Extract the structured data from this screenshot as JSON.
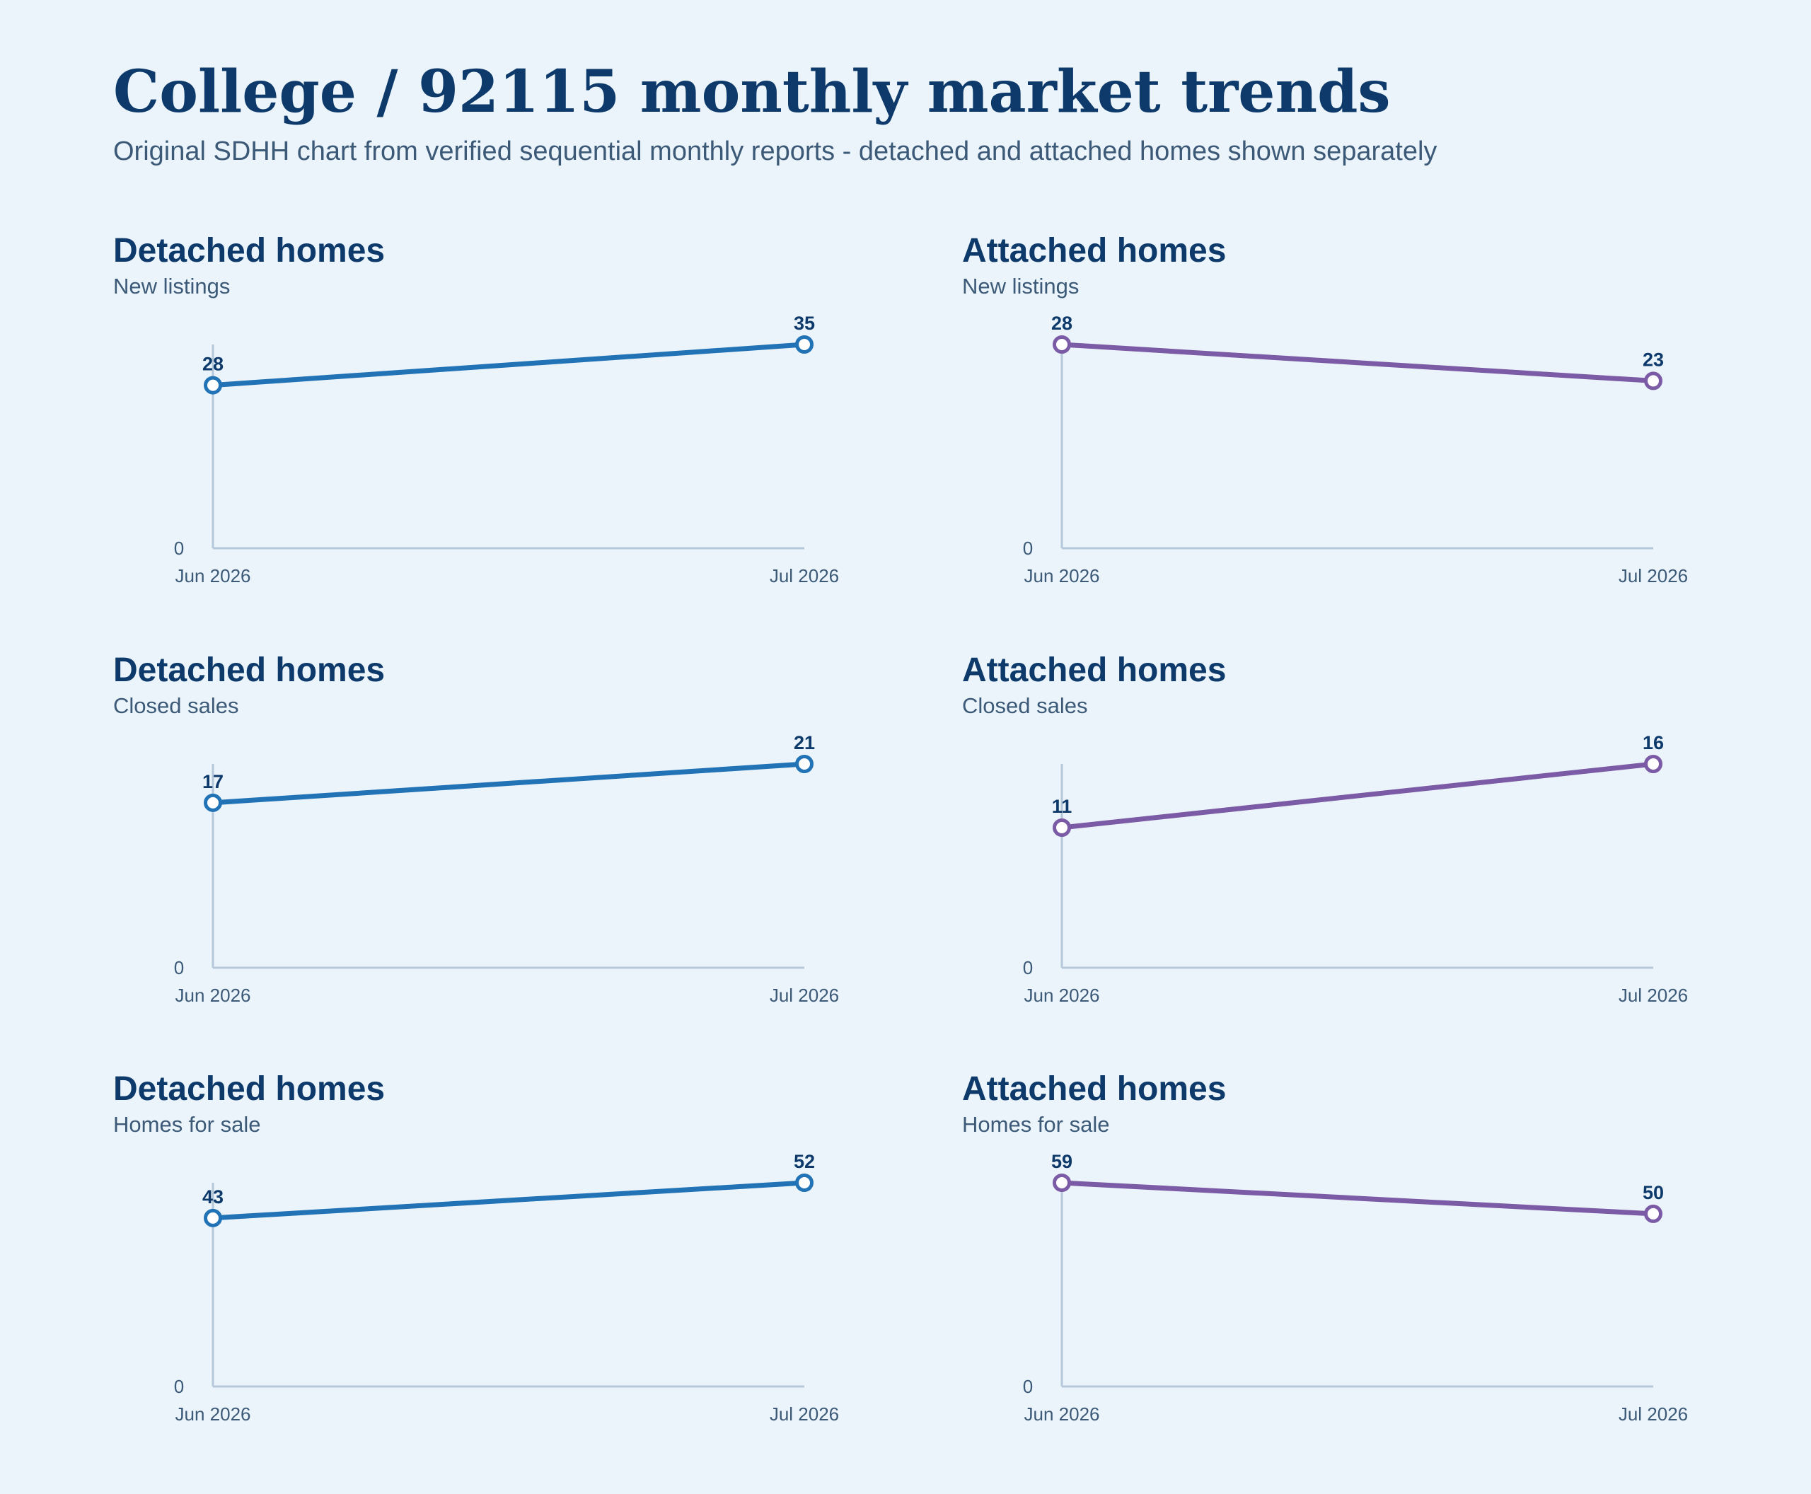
{
  "title": "College / 92115 monthly market trends",
  "subtitle": "Original SDHH chart from verified sequential monthly reports - detached and attached homes shown separately",
  "colors": {
    "background": "#eaf4fa",
    "title": "#0d3a6b",
    "detached": "#2272b6",
    "attached": "#7b5aa6",
    "axis": "#b4c8da"
  },
  "chart_data": [
    {
      "type": "line",
      "title": "Detached homes",
      "subtitle": "New listings",
      "categories": [
        "Jun 2026",
        "Jul 2026"
      ],
      "series": [
        {
          "values": [
            28,
            35
          ],
          "color": "#2272b6"
        }
      ],
      "y_ticks": [
        0
      ],
      "y_tick_labels": [
        "0"
      ],
      "data_labels": [
        "28",
        "35"
      ]
    },
    {
      "type": "line",
      "title": "Attached homes",
      "subtitle": "New listings",
      "categories": [
        "Jun 2026",
        "Jul 2026"
      ],
      "series": [
        {
          "values": [
            28,
            23
          ],
          "color": "#7b5aa6"
        }
      ],
      "y_ticks": [
        0
      ],
      "y_tick_labels": [
        "0"
      ],
      "data_labels": [
        "28",
        "23"
      ]
    },
    {
      "type": "line",
      "title": "Detached homes",
      "subtitle": "Closed sales",
      "categories": [
        "Jun 2026",
        "Jul 2026"
      ],
      "series": [
        {
          "values": [
            17,
            21
          ],
          "color": "#2272b6"
        }
      ],
      "y_ticks": [
        0
      ],
      "y_tick_labels": [
        "0"
      ],
      "data_labels": [
        "17",
        "21"
      ]
    },
    {
      "type": "line",
      "title": "Attached homes",
      "subtitle": "Closed sales",
      "categories": [
        "Jun 2026",
        "Jul 2026"
      ],
      "series": [
        {
          "values": [
            11,
            16
          ],
          "color": "#7b5aa6"
        }
      ],
      "y_ticks": [
        0
      ],
      "y_tick_labels": [
        "0"
      ],
      "data_labels": [
        "11",
        "16"
      ]
    },
    {
      "type": "line",
      "title": "Detached homes",
      "subtitle": "Homes for sale",
      "categories": [
        "Jun 2026",
        "Jul 2026"
      ],
      "series": [
        {
          "values": [
            43,
            52
          ],
          "color": "#2272b6"
        }
      ],
      "y_ticks": [
        0
      ],
      "y_tick_labels": [
        "0"
      ],
      "data_labels": [
        "43",
        "52"
      ]
    },
    {
      "type": "line",
      "title": "Attached homes",
      "subtitle": "Homes for sale",
      "categories": [
        "Jun 2026",
        "Jul 2026"
      ],
      "series": [
        {
          "values": [
            59,
            50
          ],
          "color": "#7b5aa6"
        }
      ],
      "y_ticks": [
        0
      ],
      "y_tick_labels": [
        "0"
      ],
      "data_labels": [
        "59",
        "50"
      ]
    }
  ]
}
